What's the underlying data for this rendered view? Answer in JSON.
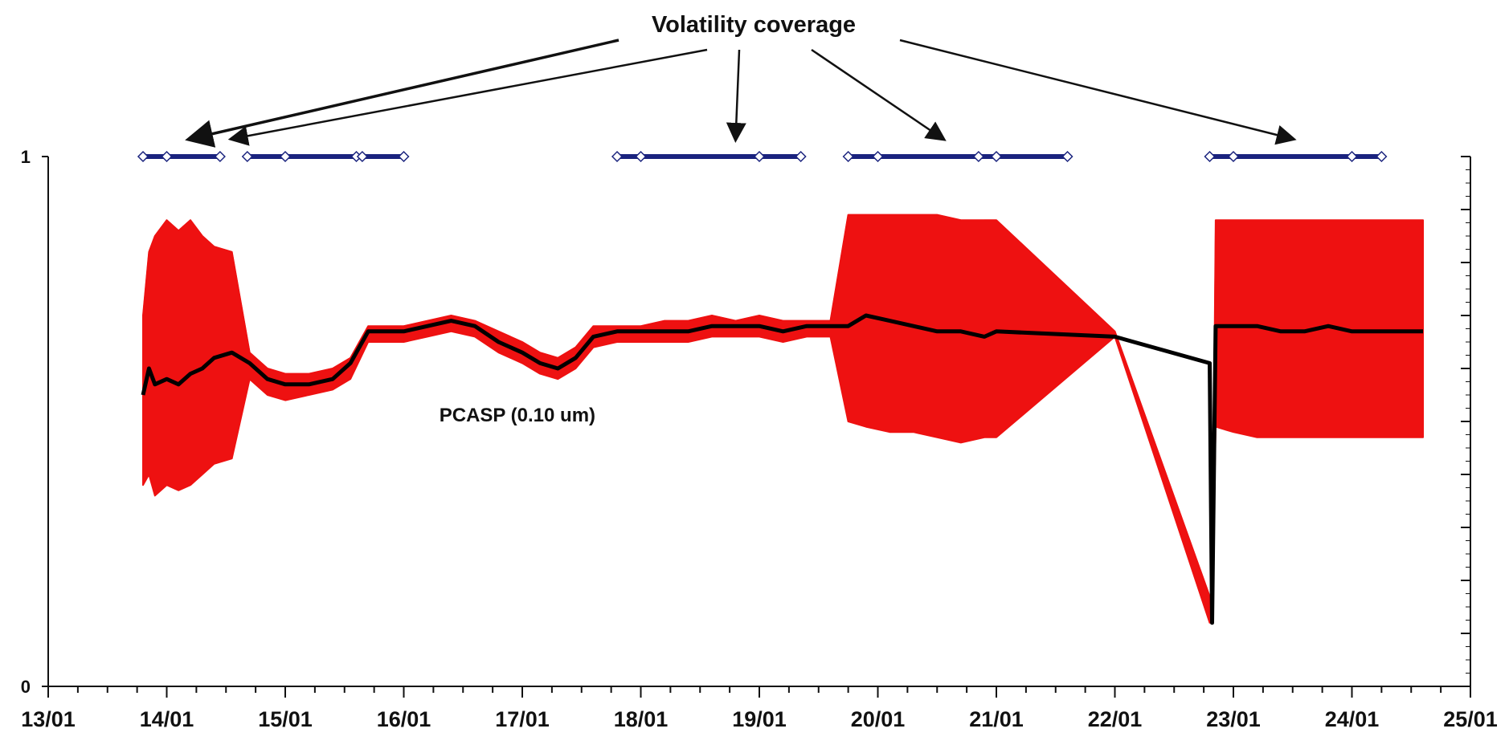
{
  "chart_data": {
    "type": "line",
    "title": "",
    "xlabel": "",
    "ylabel": "",
    "x_tick_labels": [
      "13/01",
      "14/01",
      "15/01",
      "16/01",
      "17/01",
      "18/01",
      "19/01",
      "20/01",
      "21/01",
      "22/01",
      "23/01",
      "24/01",
      "25/01"
    ],
    "xlim": [
      13.0,
      25.0
    ],
    "y_tick_labels": [
      "0",
      "1"
    ],
    "ylim": [
      0,
      1
    ],
    "grid": false,
    "colors": {
      "band": "#ee1111",
      "median": "#000000",
      "coverage": "#1a237e",
      "coverage_marker_fill": "#ffffff",
      "coverage_marker_stroke": "#1a237e"
    },
    "annotations": {
      "coverage_label": "Volatility coverage",
      "series_label": "PCASP (0.10 um)"
    },
    "series": [
      {
        "name": "PCASP (0.10 um)",
        "role": "median",
        "x": [
          13.8,
          13.85,
          13.9,
          14.0,
          14.1,
          14.2,
          14.3,
          14.4,
          14.55,
          14.7,
          14.85,
          15.0,
          15.2,
          15.4,
          15.55,
          15.7,
          15.85,
          16.0,
          16.2,
          16.4,
          16.6,
          16.8,
          17.0,
          17.15,
          17.3,
          17.45,
          17.6,
          17.8,
          18.0,
          18.2,
          18.4,
          18.6,
          18.8,
          19.0,
          19.2,
          19.4,
          19.6,
          19.75,
          19.9,
          20.1,
          20.3,
          20.5,
          20.7,
          20.9,
          21.0,
          22.0,
          22.8,
          22.82,
          22.85,
          23.0,
          23.2,
          23.4,
          23.6,
          23.8,
          24.0,
          24.2,
          24.4,
          24.6
        ],
        "y": [
          0.55,
          0.6,
          0.57,
          0.58,
          0.57,
          0.59,
          0.6,
          0.62,
          0.63,
          0.61,
          0.58,
          0.57,
          0.57,
          0.58,
          0.61,
          0.67,
          0.67,
          0.67,
          0.68,
          0.69,
          0.68,
          0.65,
          0.63,
          0.61,
          0.6,
          0.62,
          0.66,
          0.67,
          0.67,
          0.67,
          0.67,
          0.68,
          0.68,
          0.68,
          0.67,
          0.68,
          0.68,
          0.68,
          0.7,
          0.69,
          0.68,
          0.67,
          0.67,
          0.66,
          0.67,
          0.66,
          0.61,
          0.12,
          0.68,
          0.68,
          0.68,
          0.67,
          0.67,
          0.68,
          0.67,
          0.67,
          0.67,
          0.67
        ]
      },
      {
        "name": "",
        "role": "range",
        "x": [
          13.8,
          13.85,
          13.9,
          14.0,
          14.1,
          14.2,
          14.3,
          14.4,
          14.55,
          14.7,
          14.85,
          15.0,
          15.2,
          15.4,
          15.55,
          15.7,
          15.85,
          16.0,
          16.2,
          16.4,
          16.6,
          16.8,
          17.0,
          17.15,
          17.3,
          17.45,
          17.6,
          17.8,
          18.0,
          18.2,
          18.4,
          18.6,
          18.8,
          19.0,
          19.2,
          19.4,
          19.6,
          19.75,
          19.9,
          20.1,
          20.3,
          20.5,
          20.7,
          20.9,
          21.0,
          22.0,
          22.8,
          22.82,
          22.85,
          23.0,
          23.2,
          23.4,
          23.6,
          23.8,
          24.0,
          24.2,
          24.4,
          24.6
        ],
        "y_high": [
          0.7,
          0.82,
          0.85,
          0.88,
          0.86,
          0.88,
          0.85,
          0.83,
          0.82,
          0.63,
          0.6,
          0.59,
          0.59,
          0.6,
          0.62,
          0.68,
          0.68,
          0.68,
          0.69,
          0.7,
          0.69,
          0.67,
          0.65,
          0.63,
          0.62,
          0.64,
          0.68,
          0.68,
          0.68,
          0.69,
          0.69,
          0.7,
          0.69,
          0.7,
          0.69,
          0.69,
          0.69,
          0.89,
          0.89,
          0.89,
          0.89,
          0.89,
          0.88,
          0.88,
          0.88,
          0.67,
          0.17,
          0.12,
          0.88,
          0.88,
          0.88,
          0.88,
          0.88,
          0.88,
          0.88,
          0.88,
          0.88,
          0.88
        ],
        "y_low": [
          0.38,
          0.4,
          0.36,
          0.38,
          0.37,
          0.38,
          0.4,
          0.42,
          0.43,
          0.58,
          0.55,
          0.54,
          0.55,
          0.56,
          0.58,
          0.65,
          0.65,
          0.65,
          0.66,
          0.67,
          0.66,
          0.63,
          0.61,
          0.59,
          0.58,
          0.6,
          0.64,
          0.65,
          0.65,
          0.65,
          0.65,
          0.66,
          0.66,
          0.66,
          0.65,
          0.66,
          0.66,
          0.5,
          0.49,
          0.48,
          0.48,
          0.47,
          0.46,
          0.47,
          0.47,
          0.66,
          0.12,
          0.12,
          0.49,
          0.48,
          0.47,
          0.47,
          0.47,
          0.47,
          0.47,
          0.47,
          0.47,
          0.47
        ]
      }
    ],
    "coverage_segments": [
      {
        "x": [
          13.8,
          14.0,
          14.45
        ]
      },
      {
        "x": [
          14.68,
          15.0,
          15.6
        ]
      },
      {
        "x": [
          15.65,
          16.0
        ]
      },
      {
        "x": [
          17.8,
          18.0,
          19.0,
          19.35
        ]
      },
      {
        "x": [
          19.75,
          20.0,
          20.85,
          21.0,
          21.6
        ]
      },
      {
        "x": [
          22.8,
          23.0,
          24.0,
          24.25
        ]
      }
    ],
    "coverage_arrow_targets_x": [
      14.2,
      14.55,
      18.8,
      20.55,
      23.5
    ]
  }
}
